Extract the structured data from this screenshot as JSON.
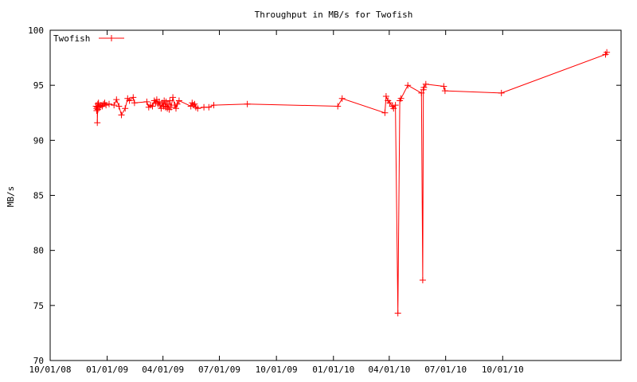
{
  "chart_data": {
    "type": "line",
    "title": "Throughput in MB/s for Twofish",
    "xlabel": "",
    "ylabel": "MB/s",
    "legend_position": "top-left",
    "grid": false,
    "xlim": [
      "2008-10-01",
      "2011-04-10"
    ],
    "ylim": [
      70,
      100
    ],
    "y_ticks": [
      70,
      75,
      80,
      85,
      90,
      95,
      100
    ],
    "x_ticks": [
      {
        "date": "2008-10-01",
        "label": "10/01/08"
      },
      {
        "date": "2009-01-01",
        "label": "01/01/09"
      },
      {
        "date": "2009-04-01",
        "label": "04/01/09"
      },
      {
        "date": "2009-07-01",
        "label": "07/01/09"
      },
      {
        "date": "2009-10-01",
        "label": "10/01/09"
      },
      {
        "date": "2010-01-01",
        "label": "01/01/10"
      },
      {
        "date": "2010-04-01",
        "label": "04/01/10"
      },
      {
        "date": "2010-07-01",
        "label": "07/01/10"
      },
      {
        "date": "2010-10-01",
        "label": "10/01/10"
      }
    ],
    "series": [
      {
        "name": "Twofish",
        "color": "#ff0000",
        "marker": "plus",
        "points": [
          [
            "2008-12-14",
            93.1
          ],
          [
            "2008-12-15",
            92.9
          ],
          [
            "2008-12-15",
            92.7
          ],
          [
            "2008-12-16",
            93.0
          ],
          [
            "2008-12-16",
            91.6
          ],
          [
            "2008-12-17",
            93.3
          ],
          [
            "2008-12-17",
            92.8
          ],
          [
            "2008-12-18",
            93.4
          ],
          [
            "2008-12-20",
            93.0
          ],
          [
            "2008-12-22",
            93.2
          ],
          [
            "2008-12-24",
            93.1
          ],
          [
            "2008-12-26",
            93.3
          ],
          [
            "2008-12-28",
            93.4
          ],
          [
            "2008-12-30",
            93.2
          ],
          [
            "2009-01-04",
            93.3
          ],
          [
            "2009-01-12",
            93.2
          ],
          [
            "2009-01-16",
            93.7
          ],
          [
            "2009-01-20",
            93.1
          ],
          [
            "2009-01-24",
            92.3
          ],
          [
            "2009-01-30",
            92.9
          ],
          [
            "2009-02-03",
            93.8
          ],
          [
            "2009-02-06",
            93.6
          ],
          [
            "2009-02-12",
            93.9
          ],
          [
            "2009-02-14",
            93.4
          ],
          [
            "2009-03-06",
            93.5
          ],
          [
            "2009-03-09",
            93.0
          ],
          [
            "2009-03-12",
            93.2
          ],
          [
            "2009-03-15",
            93.1
          ],
          [
            "2009-03-18",
            93.6
          ],
          [
            "2009-03-20",
            93.4
          ],
          [
            "2009-03-22",
            93.7
          ],
          [
            "2009-03-24",
            93.3
          ],
          [
            "2009-03-26",
            93.5
          ],
          [
            "2009-03-27",
            93.2
          ],
          [
            "2009-03-29",
            92.9
          ],
          [
            "2009-03-31",
            93.4
          ],
          [
            "2009-04-02",
            93.1
          ],
          [
            "2009-04-03",
            93.6
          ],
          [
            "2009-04-05",
            93.0
          ],
          [
            "2009-04-06",
            93.5
          ],
          [
            "2009-04-08",
            92.9
          ],
          [
            "2009-04-09",
            93.3
          ],
          [
            "2009-04-11",
            92.8
          ],
          [
            "2009-04-12",
            93.6
          ],
          [
            "2009-04-14",
            93.0
          ],
          [
            "2009-04-17",
            93.9
          ],
          [
            "2009-04-20",
            93.2
          ],
          [
            "2009-04-22",
            92.9
          ],
          [
            "2009-04-24",
            93.3
          ],
          [
            "2009-04-27",
            93.6
          ],
          [
            "2009-05-16",
            93.1
          ],
          [
            "2009-05-18",
            93.4
          ],
          [
            "2009-05-20",
            93.2
          ],
          [
            "2009-05-22",
            93.3
          ],
          [
            "2009-05-24",
            93.0
          ],
          [
            "2009-05-27",
            92.9
          ],
          [
            "2009-06-06",
            93.0
          ],
          [
            "2009-06-14",
            93.0
          ],
          [
            "2009-06-22",
            93.2
          ],
          [
            "2009-08-15",
            93.3
          ],
          [
            "2010-01-08",
            93.1
          ],
          [
            "2010-01-15",
            93.8
          ],
          [
            "2010-03-25",
            92.5
          ],
          [
            "2010-03-27",
            94.0
          ],
          [
            "2010-03-30",
            93.6
          ],
          [
            "2010-04-02",
            93.4
          ],
          [
            "2010-04-06",
            93.1
          ],
          [
            "2010-04-08",
            92.9
          ],
          [
            "2010-04-11",
            93.2
          ],
          [
            "2010-04-15",
            74.3
          ],
          [
            "2010-04-18",
            93.6
          ],
          [
            "2010-04-20",
            93.8
          ],
          [
            "2010-05-01",
            95.0
          ],
          [
            "2010-05-23",
            94.3
          ],
          [
            "2010-05-25",
            77.3
          ],
          [
            "2010-05-26",
            94.6
          ],
          [
            "2010-05-27",
            94.8
          ],
          [
            "2010-05-30",
            95.1
          ],
          [
            "2010-06-28",
            94.9
          ],
          [
            "2010-06-30",
            94.5
          ],
          [
            "2010-09-29",
            94.3
          ],
          [
            "2011-03-16",
            97.8
          ],
          [
            "2011-03-18",
            98.0
          ]
        ]
      }
    ]
  }
}
